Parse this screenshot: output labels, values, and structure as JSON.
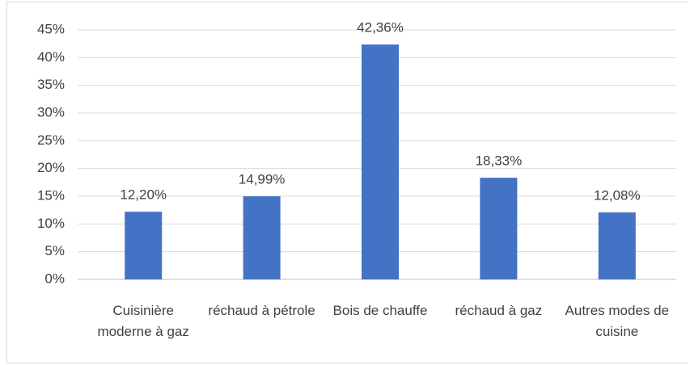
{
  "chart_data": {
    "type": "bar",
    "categories": [
      "Cuisinière moderne à gaz",
      "réchaud à pétrole",
      "Bois de chauffe",
      "réchaud à gaz",
      "Autres modes de cuisine"
    ],
    "values": [
      12.2,
      14.99,
      42.36,
      18.33,
      12.08
    ],
    "value_labels": [
      "12,20%",
      "14,99%",
      "42,36%",
      "18,33%",
      "12,08%"
    ],
    "color": "#4472c4",
    "ylim": [
      0,
      45
    ],
    "yticks": [
      {
        "value": 0,
        "label": "0%"
      },
      {
        "value": 5,
        "label": "5%"
      },
      {
        "value": 10,
        "label": "10%"
      },
      {
        "value": 15,
        "label": "15%"
      },
      {
        "value": 20,
        "label": "20%"
      },
      {
        "value": 25,
        "label": "25%"
      },
      {
        "value": 30,
        "label": "30%"
      },
      {
        "value": 35,
        "label": "35%"
      },
      {
        "value": 40,
        "label": "40%"
      },
      {
        "value": 45,
        "label": "45%"
      }
    ],
    "grid": true
  }
}
